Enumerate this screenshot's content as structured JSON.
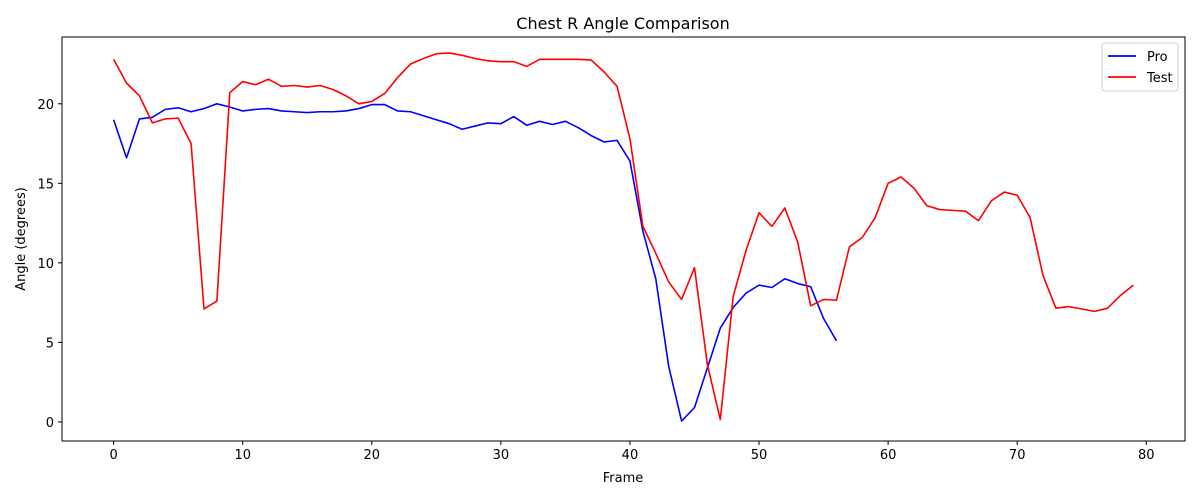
{
  "chart_data": {
    "type": "line",
    "title": "Chest R Angle Comparison",
    "xlabel": "Frame",
    "ylabel": "Angle (degrees)",
    "xlim": [
      -4,
      83
    ],
    "ylim": [
      -1.2,
      24.2
    ],
    "xticks": [
      0,
      10,
      20,
      30,
      40,
      50,
      60,
      70,
      80
    ],
    "yticks": [
      0,
      5,
      10,
      15,
      20
    ],
    "grid": false,
    "legend_position": "top-right",
    "series": [
      {
        "name": "Pro",
        "color": "#0000ff",
        "x": [
          0,
          1,
          2,
          3,
          4,
          5,
          6,
          7,
          8,
          9,
          10,
          11,
          12,
          13,
          14,
          15,
          16,
          17,
          18,
          19,
          20,
          21,
          22,
          23,
          24,
          25,
          26,
          27,
          28,
          29,
          30,
          31,
          32,
          33,
          34,
          35,
          36,
          37,
          38,
          39,
          40,
          41,
          42,
          43,
          44,
          45,
          46,
          47,
          48,
          49,
          50,
          51,
          52,
          53,
          54,
          55,
          56
        ],
        "values": [
          19.0,
          16.6,
          19.05,
          19.15,
          19.65,
          19.75,
          19.5,
          19.7,
          20.0,
          19.8,
          19.55,
          19.65,
          19.7,
          19.55,
          19.5,
          19.45,
          19.5,
          19.5,
          19.55,
          19.7,
          19.95,
          19.95,
          19.55,
          19.5,
          19.25,
          19.0,
          18.75,
          18.4,
          18.6,
          18.8,
          18.75,
          19.2,
          18.65,
          18.9,
          18.7,
          18.9,
          18.5,
          18.0,
          17.6,
          17.7,
          16.4,
          12.0,
          9.0,
          3.5,
          0.05,
          0.9,
          3.4,
          5.9,
          7.2,
          8.1,
          8.6,
          8.45,
          9.0,
          8.7,
          8.5,
          6.5,
          5.1
        ]
      },
      {
        "name": "Test",
        "color": "#ff0000",
        "x": [
          0,
          1,
          2,
          3,
          4,
          5,
          6,
          7,
          8,
          9,
          10,
          11,
          12,
          13,
          14,
          15,
          16,
          17,
          18,
          19,
          20,
          21,
          22,
          23,
          24,
          25,
          26,
          27,
          28,
          29,
          30,
          31,
          32,
          33,
          34,
          35,
          36,
          37,
          38,
          39,
          40,
          41,
          42,
          43,
          44,
          45,
          46,
          47,
          48,
          49,
          50,
          51,
          52,
          53,
          54,
          55,
          56,
          57,
          58,
          59,
          60,
          61,
          62,
          63,
          64,
          65,
          66,
          67,
          68,
          69,
          70,
          71,
          72,
          73,
          74,
          75,
          76,
          77,
          78,
          79
        ],
        "values": [
          22.8,
          21.3,
          20.5,
          18.8,
          19.05,
          19.1,
          17.5,
          7.1,
          7.6,
          20.7,
          21.4,
          21.2,
          21.55,
          21.1,
          21.15,
          21.05,
          21.15,
          20.9,
          20.5,
          20.0,
          20.15,
          20.65,
          21.65,
          22.5,
          22.85,
          23.15,
          23.2,
          23.05,
          22.85,
          22.7,
          22.65,
          22.65,
          22.35,
          22.8,
          22.8,
          22.8,
          22.8,
          22.75,
          22.0,
          21.1,
          17.8,
          12.3,
          10.6,
          8.8,
          7.7,
          9.7,
          3.6,
          0.15,
          7.9,
          10.8,
          13.15,
          12.3,
          13.45,
          11.3,
          7.3,
          7.7,
          7.65,
          11.0,
          11.6,
          12.85,
          15.0,
          15.4,
          14.7,
          13.6,
          13.35,
          13.3,
          13.25,
          12.65,
          13.9,
          14.45,
          14.25,
          12.85,
          9.2,
          7.15,
          7.25,
          7.1,
          6.95,
          7.15,
          7.95,
          8.6
        ]
      }
    ]
  }
}
